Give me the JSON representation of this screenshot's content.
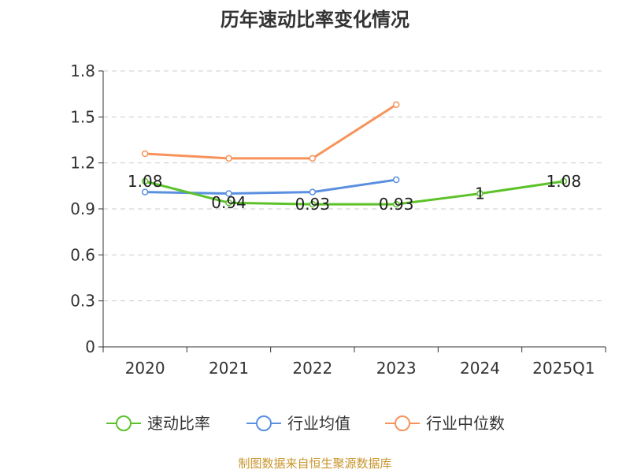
{
  "chart_data": {
    "type": "line",
    "title": "历年速动比率变化情况",
    "categories": [
      "2020",
      "2021",
      "2022",
      "2023",
      "2024",
      "2025Q1"
    ],
    "ylim": [
      0,
      1.8
    ],
    "yticks": [
      "0",
      "0.3",
      "0.6",
      "0.9",
      "1.2",
      "1.5",
      "1.8"
    ],
    "grid": true,
    "legend_position": "bottom",
    "series": [
      {
        "name": "速动比率",
        "color": "#5cc22a",
        "values": [
          1.08,
          0.94,
          0.93,
          0.93,
          1,
          1.08
        ],
        "labels": [
          "1.08",
          "0.94",
          "0.93",
          "0.93",
          "1",
          "1.08"
        ]
      },
      {
        "name": "行业均值",
        "color": "#5b8fe0",
        "values": [
          1.01,
          1.0,
          1.01,
          1.09,
          null,
          null
        ]
      },
      {
        "name": "行业中位数",
        "color": "#f7935a",
        "values": [
          1.26,
          1.23,
          1.23,
          1.58,
          null,
          null
        ]
      }
    ],
    "source": "制图数据来自恒生聚源数据库"
  }
}
